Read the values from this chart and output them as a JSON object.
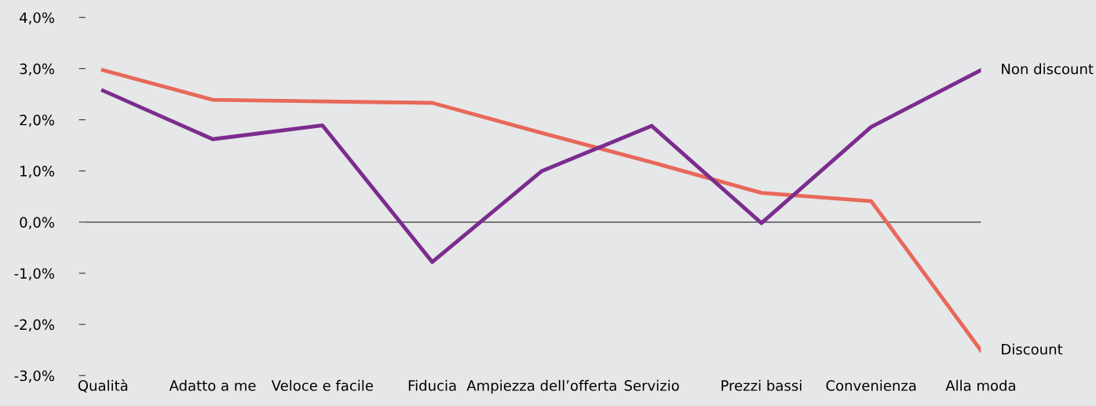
{
  "chart_data": {
    "type": "line",
    "categories": [
      "Qualità",
      "Adatto a me",
      "Veloce e facile",
      "Fiducia",
      "Ampiezza dell’offerta",
      "Servizio",
      "Prezzi bassi",
      "Convenienza",
      "Alla moda"
    ],
    "series": [
      {
        "name": "Discount",
        "color": "#e8685a",
        "values": [
          2.97,
          2.39,
          2.36,
          2.33,
          1.74,
          1.17,
          0.57,
          0.41,
          -2.51
        ]
      },
      {
        "name": "Non discount",
        "color": "#7b2d8e",
        "values": [
          2.57,
          1.62,
          1.89,
          -0.78,
          1.0,
          1.88,
          -0.02,
          1.86,
          2.97
        ]
      }
    ],
    "ylim": [
      -3,
      4
    ],
    "yticks": [
      {
        "value": -3,
        "label": "-3,0%"
      },
      {
        "value": -2,
        "label": "-2,0%"
      },
      {
        "value": -1,
        "label": "-1,0%"
      },
      {
        "value": 0,
        "label": "0,0%"
      },
      {
        "value": 1,
        "label": "1,0%"
      },
      {
        "value": 2,
        "label": "2,0%"
      },
      {
        "value": 3,
        "label": "3,0%"
      },
      {
        "value": 4,
        "label": "4,0%"
      }
    ],
    "ref_lines": [
      {
        "axis": "y",
        "value": 0,
        "color": "#333333"
      }
    ],
    "grid": false,
    "legend": false,
    "marker": "none",
    "line_style": "solid"
  }
}
